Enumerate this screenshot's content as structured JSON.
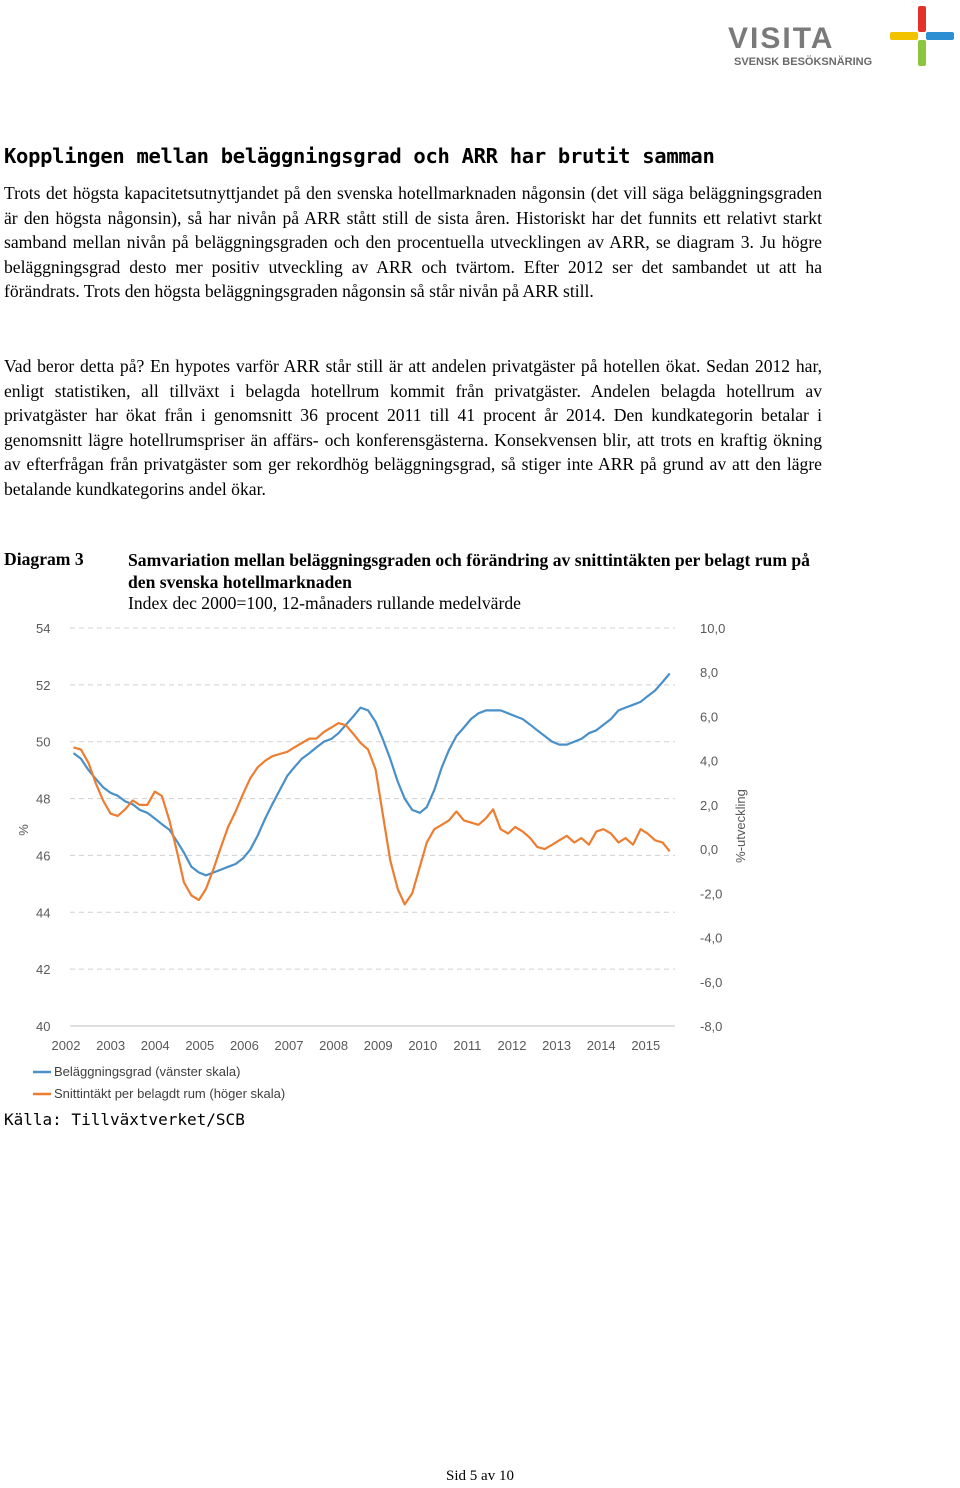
{
  "logo": {
    "name": "VISITA",
    "tagline": "SVENSK BESÖKSNÄRING",
    "colors": [
      "#e4322b",
      "#2b8fd1",
      "#f2c200",
      "#8cc63f"
    ]
  },
  "heading": "Kopplingen mellan beläggningsgrad och ARR har brutit samman",
  "paragraphs": [
    "Trots det högsta kapacitetsutnyttjandet på den svenska hotellmarknaden någonsin (det vill säga beläggningsgraden är den högsta någonsin), så har nivån på ARR stått still de sista åren. Historiskt har det funnits ett relativt starkt samband mellan nivån på beläggningsgraden och den procentuella utvecklingen av ARR, se diagram 3. Ju högre beläggningsgrad desto mer positiv utveckling av ARR och tvärtom. Efter 2012 ser det sambandet ut att ha förändrats. Trots den högsta beläggningsgraden någonsin så står nivån på ARR still.",
    "Vad beror detta på? En hypotes varför ARR står still är att andelen privatgäster på hotellen ökat. Sedan 2012 har, enligt statistiken, all tillväxt i belagda hotellrum kommit från privatgäster. Andelen belagda hotellrum av privatgäster har ökat från i genomsnitt 36 procent 2011 till 41 procent år 2014. Den kundkategorin betalar i genomsnitt lägre hotellrumspriser än affärs- och konferensgästerna. Konsekvensen blir, att trots en kraftig ökning av efterfrågan från privatgäster som ger rekordhög beläggningsgrad, så stiger inte ARR på grund av att den lägre betalande kundkategorins andel ökar."
  ],
  "diagram": {
    "label": "Diagram 3",
    "title": "Samvariation mellan beläggningsgraden och förändring av snittintäkten per belagt rum på den svenska hotellmarknaden",
    "subtitle": "Index dec 2000=100, 12-månaders rullande medelvärde"
  },
  "chart_data": {
    "type": "line",
    "x_label_categories": [
      "2002",
      "2003",
      "2004",
      "2005",
      "2006",
      "2007",
      "2008",
      "2009",
      "2010",
      "2011",
      "2012",
      "2013",
      "2014",
      "2015"
    ],
    "y_left": {
      "label": "%",
      "ticks": [
        "54",
        "52",
        "50",
        "48",
        "46",
        "44",
        "42",
        "40"
      ],
      "range": [
        40,
        54
      ]
    },
    "y_right": {
      "label": "%-utveckling",
      "ticks": [
        "10,0",
        "8,0",
        "6,0",
        "4,0",
        "2,0",
        "0,0",
        "-2,0",
        "-4,0",
        "-6,0",
        "-8,0"
      ],
      "range": [
        -8,
        10
      ]
    },
    "grid": "dashed horizontal",
    "legend_position": "bottom-left",
    "series": [
      {
        "name": "Beläggningsgrad (vänster skala)",
        "color": "#4a90c8",
        "axis": "left",
        "x": [
          2001.58,
          2001.75,
          2001.92,
          2002.08,
          2002.25,
          2002.42,
          2002.58,
          2002.75,
          2002.92,
          2003.08,
          2003.25,
          2003.42,
          2003.58,
          2003.75,
          2003.92,
          2004.08,
          2004.25,
          2004.42,
          2004.58,
          2004.75,
          2004.92,
          2005.08,
          2005.25,
          2005.42,
          2005.58,
          2005.75,
          2005.92,
          2006.08,
          2006.25,
          2006.42,
          2006.58,
          2006.75,
          2006.92,
          2007.08,
          2007.25,
          2007.42,
          2007.58,
          2007.75,
          2007.92,
          2008.08,
          2008.25,
          2008.42,
          2008.58,
          2008.75,
          2008.92,
          2009.08,
          2009.25,
          2009.42,
          2009.58,
          2009.75,
          2009.92,
          2010.08,
          2010.25,
          2010.42,
          2010.58,
          2010.75,
          2010.92,
          2011.08,
          2011.25,
          2011.42,
          2011.58,
          2011.75,
          2011.92,
          2012.08,
          2012.25,
          2012.42,
          2012.58,
          2012.75,
          2012.92,
          2013.08,
          2013.25,
          2013.42,
          2013.58,
          2013.75,
          2013.92,
          2014.08,
          2014.25,
          2014.42,
          2014.58,
          2014.75,
          2014.92,
          2015.08
        ],
        "values": [
          49.6,
          49.4,
          49.0,
          48.7,
          48.4,
          48.2,
          48.1,
          47.9,
          47.8,
          47.6,
          47.5,
          47.3,
          47.1,
          46.9,
          46.5,
          46.1,
          45.6,
          45.4,
          45.3,
          45.4,
          45.5,
          45.6,
          45.7,
          45.9,
          46.2,
          46.7,
          47.3,
          47.8,
          48.3,
          48.8,
          49.1,
          49.4,
          49.6,
          49.8,
          50.0,
          50.1,
          50.3,
          50.6,
          50.9,
          51.2,
          51.1,
          50.7,
          50.1,
          49.4,
          48.6,
          48.0,
          47.6,
          47.5,
          47.7,
          48.3,
          49.1,
          49.7,
          50.2,
          50.5,
          50.8,
          51.0,
          51.1,
          51.1,
          51.1,
          51.0,
          50.9,
          50.8,
          50.6,
          50.4,
          50.2,
          50.0,
          49.9,
          49.9,
          50.0,
          50.1,
          50.3,
          50.4,
          50.6,
          50.8,
          51.1,
          51.2,
          51.3,
          51.4,
          51.6,
          51.8,
          52.1,
          52.4
        ]
      },
      {
        "name": "Snittintäkt per belagdt rum (höger skala)",
        "color": "#ed7d31",
        "axis": "right",
        "x": [
          2001.58,
          2001.75,
          2001.92,
          2002.08,
          2002.25,
          2002.42,
          2002.58,
          2002.75,
          2002.92,
          2003.08,
          2003.25,
          2003.42,
          2003.58,
          2003.75,
          2003.92,
          2004.08,
          2004.25,
          2004.42,
          2004.58,
          2004.75,
          2004.92,
          2005.08,
          2005.25,
          2005.42,
          2005.58,
          2005.75,
          2005.92,
          2006.08,
          2006.25,
          2006.42,
          2006.58,
          2006.75,
          2006.92,
          2007.08,
          2007.25,
          2007.42,
          2007.58,
          2007.75,
          2007.92,
          2008.08,
          2008.25,
          2008.42,
          2008.58,
          2008.75,
          2008.92,
          2009.08,
          2009.25,
          2009.42,
          2009.58,
          2009.75,
          2009.92,
          2010.08,
          2010.25,
          2010.42,
          2010.58,
          2010.75,
          2010.92,
          2011.08,
          2011.25,
          2011.42,
          2011.58,
          2011.75,
          2011.92,
          2012.08,
          2012.25,
          2012.42,
          2012.58,
          2012.75,
          2012.92,
          2013.08,
          2013.25,
          2013.42,
          2013.58,
          2013.75,
          2013.92,
          2014.08,
          2014.25,
          2014.42,
          2014.58,
          2014.75,
          2014.92,
          2015.08
        ],
        "values": [
          4.6,
          4.5,
          3.9,
          3.0,
          2.2,
          1.6,
          1.5,
          1.8,
          2.2,
          2.0,
          2.0,
          2.6,
          2.4,
          1.3,
          -0.1,
          -1.5,
          -2.1,
          -2.3,
          -1.8,
          -0.9,
          0.1,
          1.0,
          1.7,
          2.5,
          3.2,
          3.7,
          4.0,
          4.2,
          4.3,
          4.4,
          4.6,
          4.8,
          5.0,
          5.0,
          5.3,
          5.5,
          5.7,
          5.6,
          5.2,
          4.8,
          4.5,
          3.6,
          1.6,
          -0.5,
          -1.8,
          -2.5,
          -2.0,
          -0.8,
          0.3,
          0.9,
          1.1,
          1.3,
          1.7,
          1.3,
          1.2,
          1.1,
          1.4,
          1.8,
          0.9,
          0.7,
          1.0,
          0.8,
          0.5,
          0.1,
          0.0,
          0.2,
          0.4,
          0.6,
          0.3,
          0.5,
          0.2,
          0.8,
          0.9,
          0.7,
          0.3,
          0.5,
          0.2,
          0.9,
          0.7,
          0.4,
          0.3,
          -0.1
        ]
      }
    ]
  },
  "source": "Källa: Tillväxtverket/SCB",
  "footer": "Sid 5 av 10"
}
